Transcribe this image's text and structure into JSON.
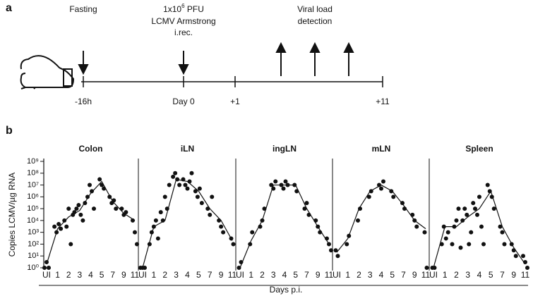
{
  "timeline": {
    "panel_label": "a",
    "fasting": "Fasting",
    "dose_base": "1x10",
    "dose_exp": "6",
    "dose_unit": " PFU",
    "virus": "LCMV Armstrong",
    "route": "i.rec.",
    "detection_1": "Viral load",
    "detection_2": "detection",
    "ticks": [
      "-16h",
      "Day 0",
      "+1",
      "+11"
    ]
  },
  "panel_b_label": "b",
  "chart_data": [
    {
      "type": "scatter",
      "title": "Colon",
      "ylabel": "Copies LCMV/µg RNA",
      "xlabel": "Days p.i.",
      "log_scale": true,
      "ylim": [
        1,
        1000000000.0
      ],
      "yticks": [
        {
          "value": 1,
          "label": "10⁰"
        },
        {
          "value": 10,
          "label": "10¹"
        },
        {
          "value": 100,
          "label": "10²"
        },
        {
          "value": 1000,
          "label": "10³"
        },
        {
          "value": 10000,
          "label": "10⁴"
        },
        {
          "value": 100000,
          "label": "10⁵"
        },
        {
          "value": 1000000,
          "label": "10⁶"
        },
        {
          "value": 10000000,
          "label": "10⁷"
        },
        {
          "value": 100000000,
          "label": "10⁸"
        },
        {
          "value": 1000000000,
          "label": "10⁹"
        }
      ],
      "categories": [
        "UI",
        "1",
        "2",
        "3",
        "4",
        "5",
        "7",
        "9",
        "11"
      ],
      "points": {
        "x": [
          "UI",
          "UI",
          "UI",
          "1",
          "1",
          "1",
          "1",
          "2",
          "2",
          "2",
          "2",
          "2",
          "3",
          "3",
          "3",
          "3",
          "3",
          "3",
          "4",
          "4",
          "4",
          "4",
          "5",
          "5",
          "5",
          "7",
          "7",
          "7",
          "7",
          "9",
          "9",
          "9",
          "11",
          "11",
          "11"
        ],
        "values": [
          1,
          3,
          1,
          3000.0,
          1000.0,
          5000.0,
          2000.0,
          10000.0,
          3000.0,
          100000.0,
          100.0,
          30000.0,
          50000.0,
          100000.0,
          200000.0,
          30000.0,
          10000.0,
          300000.0,
          1000000.0,
          10000000.0,
          3000000.0,
          100000.0,
          30000000.0,
          10000000.0,
          5000000.0,
          1000000.0,
          300000.0,
          500000.0,
          100000.0,
          100000.0,
          30000.0,
          50000.0,
          10000.0,
          1000.0,
          100.0
        ]
      },
      "line": [
        2,
        2000.0,
        20000.0,
        70000.0,
        2000000.0,
        20000000.0,
        400000.0,
        40000.0,
        10000.0
      ]
    },
    {
      "type": "scatter",
      "title": "iLN",
      "log_scale": true,
      "ylim": [
        1,
        1000000000.0
      ],
      "categories": [
        "UI",
        "1",
        "2",
        "3",
        "4",
        "5",
        "7",
        "9",
        "11"
      ],
      "points": {
        "x": [
          "UI",
          "UI",
          "UI",
          "1",
          "1",
          "1",
          "1",
          "1",
          "2",
          "2",
          "2",
          "2",
          "2",
          "3",
          "3",
          "3",
          "3",
          "4",
          "4",
          "4",
          "4",
          "4",
          "5",
          "5",
          "5",
          "5",
          "7",
          "7",
          "7",
          "9",
          "9",
          "9",
          "11",
          "11"
        ],
        "values": [
          1,
          1,
          1,
          100.0,
          1000.0,
          3000.0,
          10000.0,
          300.0,
          50000.0,
          10000.0,
          1000000.0,
          100000.0,
          10000000.0,
          50000000.0,
          100000000.0,
          30000000.0,
          10000000.0,
          30000000.0,
          10000000.0,
          5000000.0,
          20000000.0,
          100000000.0,
          3000000.0,
          1000000.0,
          5000000.0,
          300000.0,
          100000.0,
          30000.0,
          1000000.0,
          10000.0,
          3000.0,
          1000.0,
          300.0,
          100.0
        ]
      },
      "line": [
        1,
        3000.0,
        10000.0,
        30000000.0,
        20000000.0,
        3000000.0,
        100000.0,
        10000.0,
        200.0
      ]
    },
    {
      "type": "scatter",
      "title": "ingLN",
      "log_scale": true,
      "ylim": [
        1,
        1000000000.0
      ],
      "categories": [
        "UI",
        "1",
        "2",
        "3",
        "4",
        "5",
        "7",
        "9",
        "11"
      ],
      "points": {
        "x": [
          "UI",
          "UI",
          "1",
          "1",
          "2",
          "2",
          "2",
          "3",
          "3",
          "3",
          "4",
          "4",
          "4",
          "4",
          "5",
          "5",
          "7",
          "7",
          "7",
          "9",
          "9",
          "9",
          "11",
          "11",
          "11"
        ],
        "values": [
          1,
          3,
          100.0,
          1000.0,
          3000.0,
          10000.0,
          100000.0,
          10000000.0,
          5000000.0,
          20000000.0,
          10000000.0,
          5000000.0,
          20000000.0,
          10000000.0,
          10000000.0,
          3000000.0,
          100000.0,
          300000.0,
          30000.0,
          10000.0,
          3000.0,
          1000.0,
          300.0,
          100.0,
          30
        ]
      },
      "line": [
        1,
        200.0,
        10000.0,
        10000000.0,
        10000000.0,
        10000000.0,
        100000.0,
        3000.0,
        100.0
      ]
    },
    {
      "type": "scatter",
      "title": "mLN",
      "log_scale": true,
      "ylim": [
        1,
        1000000000.0
      ],
      "categories": [
        "UI",
        "1",
        "2",
        "3",
        "4",
        "5",
        "7",
        "9",
        "11"
      ],
      "points": {
        "x": [
          "UI",
          "UI",
          "1",
          "1",
          "2",
          "2",
          "3",
          "3",
          "4",
          "4",
          "4",
          "5",
          "5",
          "7",
          "7",
          "9",
          "9",
          "9",
          "11",
          "11"
        ],
        "values": [
          30,
          10,
          100.0,
          500.0,
          10000.0,
          100000.0,
          1000000.0,
          3000000.0,
          10000000.0,
          5000000.0,
          20000000.0,
          3000000.0,
          1000000.0,
          300000.0,
          100000.0,
          30000.0,
          10000.0,
          3000.0,
          1000.0,
          1
        ]
      },
      "line": [
        20,
        300.0,
        100000.0,
        3000000.0,
        10000000.0,
        3000000.0,
        200000.0,
        10000.0,
        2000.0
      ]
    },
    {
      "type": "scatter",
      "title": "Spleen",
      "log_scale": true,
      "ylim": [
        1,
        1000000000.0
      ],
      "categories": [
        "UI",
        "1",
        "2",
        "3",
        "4",
        "5",
        "7",
        "9",
        "11"
      ],
      "points": {
        "x": [
          "UI",
          "UI",
          "1",
          "1",
          "1",
          "1",
          "2",
          "2",
          "2",
          "2",
          "2",
          "3",
          "3",
          "3",
          "3",
          "3",
          "3",
          "4",
          "4",
          "4",
          "4",
          "4",
          "5",
          "5",
          "5",
          "5",
          "7",
          "7",
          "7",
          "9",
          "9",
          "9",
          "11",
          "11",
          "11"
        ],
        "values": [
          1,
          1,
          100.0,
          3000.0,
          300.0,
          1000.0,
          100.0,
          3000.0,
          10000.0,
          100000.0,
          50,
          10000.0,
          100000.0,
          30000.0,
          100.0,
          1000.0,
          300000.0,
          100000.0,
          30000.0,
          1000000.0,
          3000.0,
          100.0,
          10000000.0,
          3000000.0,
          1000000.0,
          100000.0,
          3000.0,
          1000.0,
          100.0,
          100.0,
          30,
          10,
          10,
          3,
          1
        ]
      },
      "line": [
        1,
        3000.0,
        3000.0,
        20000.0,
        100000.0,
        3000000.0,
        3000.0,
        50,
        2
      ]
    }
  ]
}
